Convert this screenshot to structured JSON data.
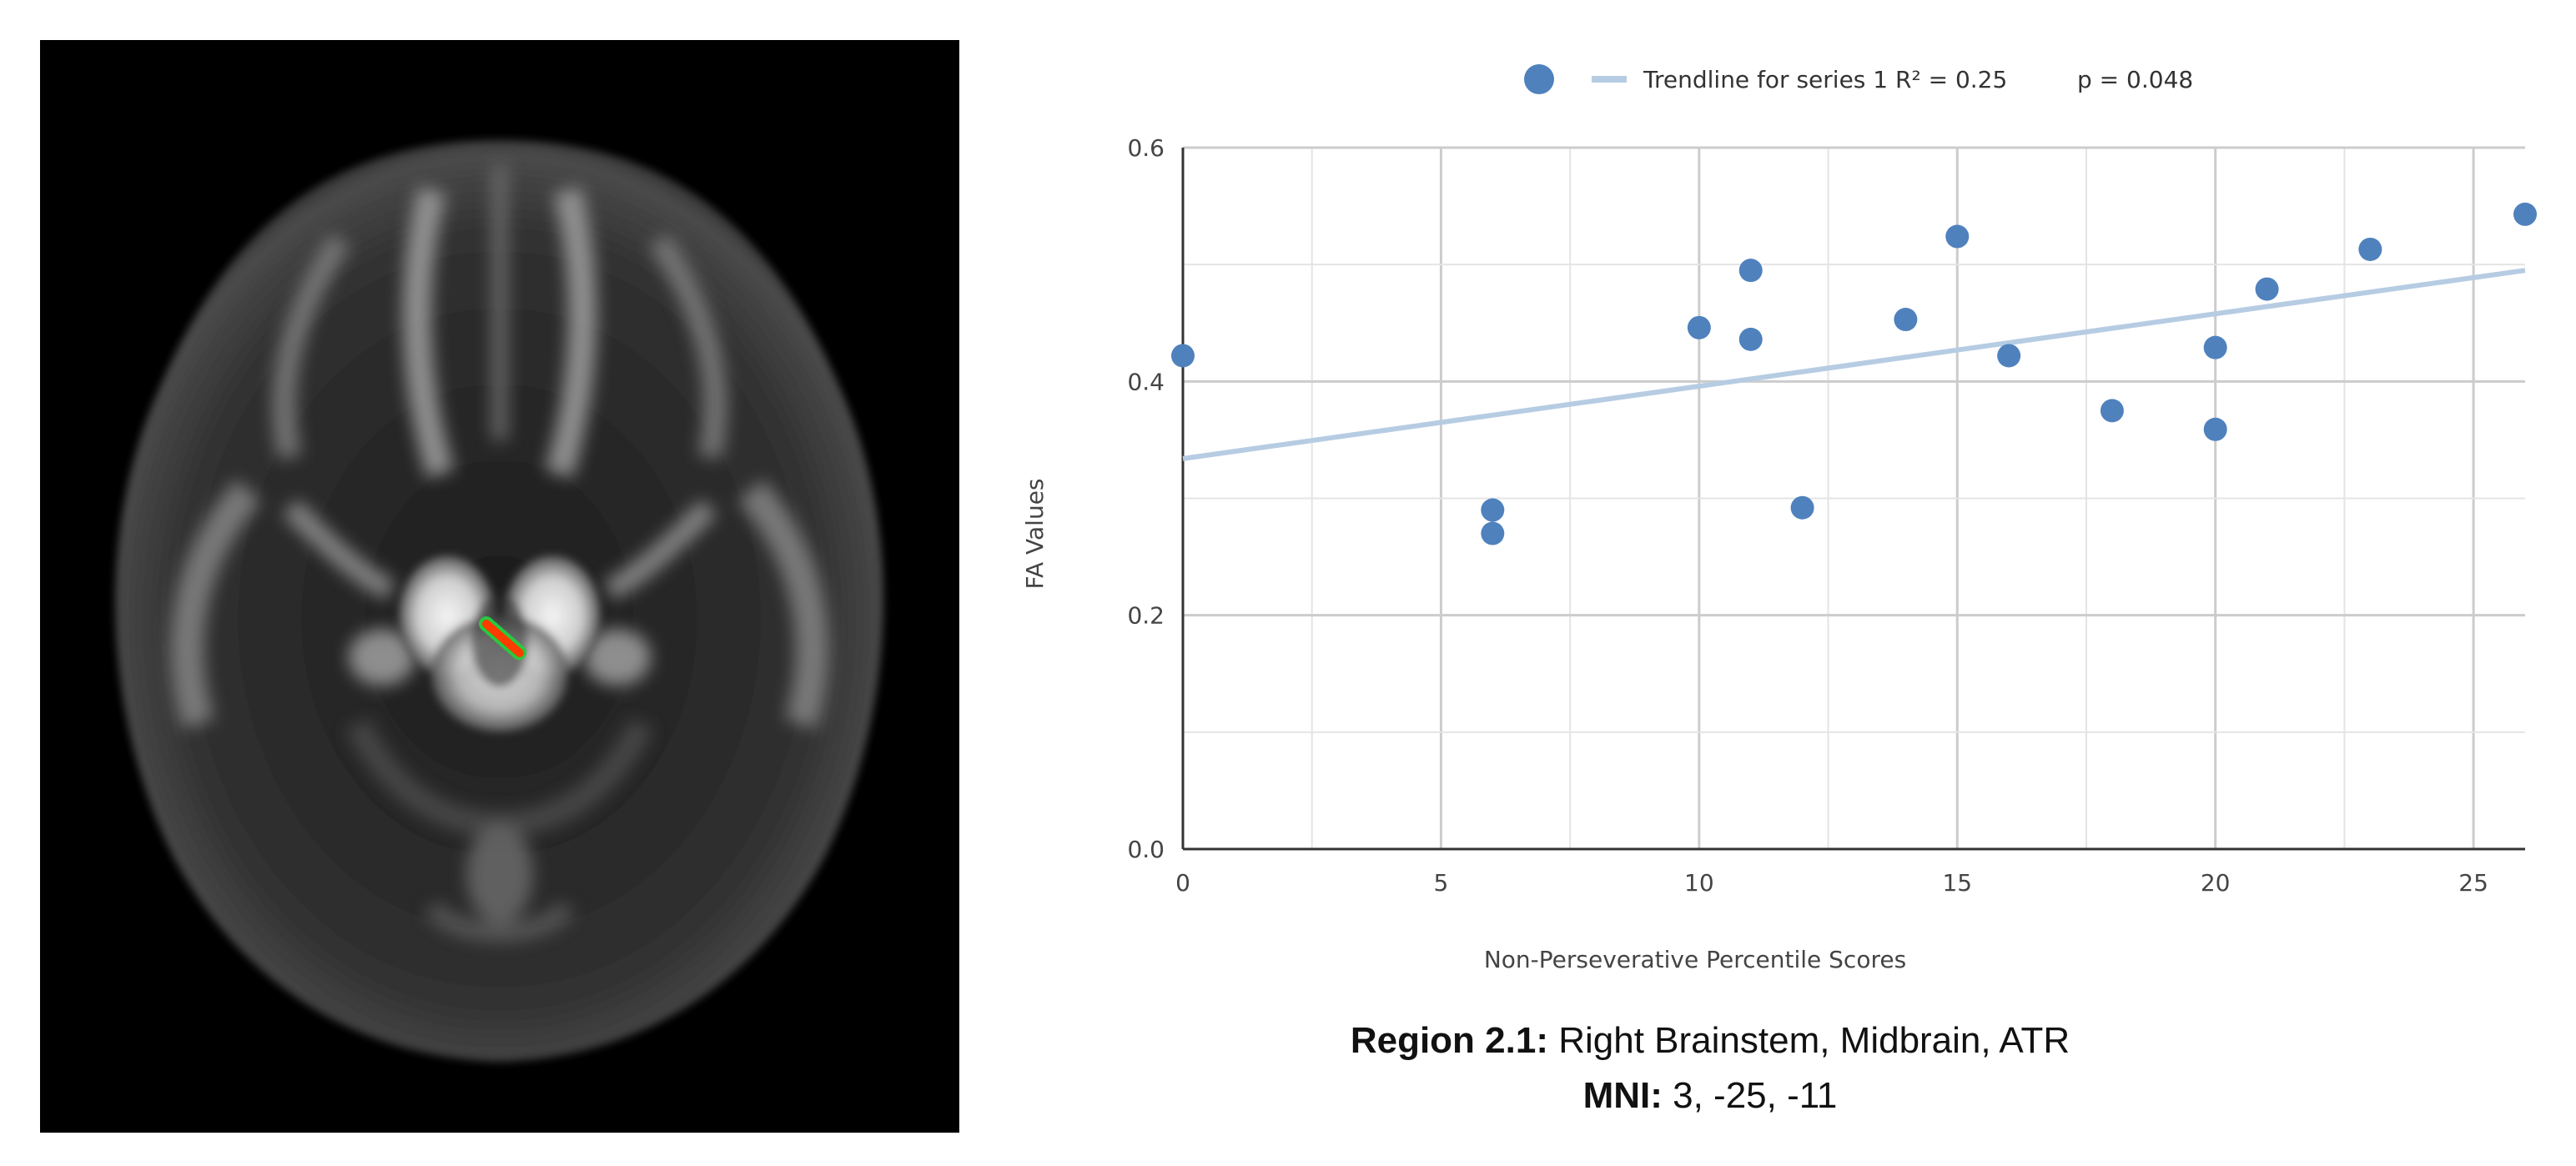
{
  "brain_image": {
    "marker_color": "#ff3b00",
    "marker_outline_color": "#27c93f"
  },
  "chart_data": {
    "type": "scatter",
    "title": "",
    "xlabel": "Non-Perseverative Percentile Scores",
    "ylabel": "FA Values",
    "xlim": [
      0,
      26
    ],
    "ylim": [
      0,
      0.6
    ],
    "x_ticks": [
      0,
      5,
      10,
      15,
      20,
      25
    ],
    "y_ticks": [
      0.0,
      0.2,
      0.4,
      0.6
    ],
    "x_tick_labels": [
      "0",
      "5",
      "10",
      "15",
      "20",
      "25"
    ],
    "y_tick_labels": [
      "0.0",
      "0.2",
      "0.4",
      "0.6"
    ],
    "grid": true,
    "legend_position": "top",
    "series": [
      {
        "color": "#4f81bd",
        "points": [
          {
            "x": 0,
            "y": 0.422
          },
          {
            "x": 6,
            "y": 0.29
          },
          {
            "x": 6,
            "y": 0.27
          },
          {
            "x": 10,
            "y": 0.446
          },
          {
            "x": 11,
            "y": 0.495
          },
          {
            "x": 11,
            "y": 0.436
          },
          {
            "x": 12,
            "y": 0.292
          },
          {
            "x": 14,
            "y": 0.453
          },
          {
            "x": 15,
            "y": 0.524
          },
          {
            "x": 16,
            "y": 0.422
          },
          {
            "x": 18,
            "y": 0.375
          },
          {
            "x": 20,
            "y": 0.429
          },
          {
            "x": 20,
            "y": 0.359
          },
          {
            "x": 21,
            "y": 0.479
          },
          {
            "x": 23,
            "y": 0.513
          },
          {
            "x": 26,
            "y": 0.543
          }
        ]
      }
    ],
    "trendline": {
      "label": "Trendline for series 1 R² = 0.25",
      "stat": "p = 0.048",
      "color": "#b6cce3",
      "x_start": 0,
      "y_start": 0.334,
      "x_end": 26,
      "y_end": 0.495
    }
  },
  "caption": {
    "region_label": "Region 2.1:",
    "region_text": " Right Brainstem, Midbrain, ATR",
    "mni_label": "MNI:",
    "mni_text": " 3, -25, -11"
  }
}
